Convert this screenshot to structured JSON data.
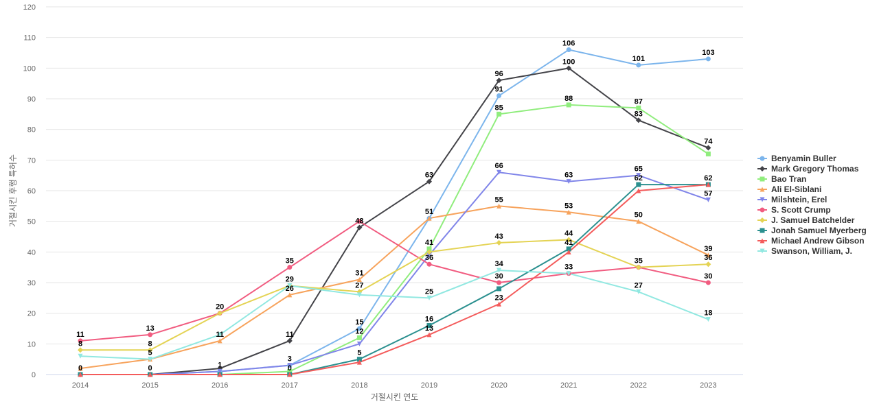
{
  "chart_data": {
    "type": "line",
    "title": "",
    "xlabel": "거절시킨 연도",
    "ylabel": "거절시킨 후행 특허수",
    "x": [
      "2014",
      "2015",
      "2016",
      "2017",
      "2018",
      "2019",
      "2020",
      "2021",
      "2022",
      "2023"
    ],
    "ylim": [
      0,
      120
    ],
    "yticks": [
      0,
      10,
      20,
      30,
      40,
      50,
      60,
      70,
      80,
      90,
      100,
      110,
      120
    ],
    "grid": true,
    "legend_position": "right",
    "series": [
      {
        "name": "Benyamin Buller",
        "color": "#7cb5ec",
        "marker": "circle",
        "values": [
          0,
          0,
          1,
          3,
          15,
          51,
          91,
          106,
          101,
          103
        ]
      },
      {
        "name": "Mark Gregory Thomas",
        "color": "#434348",
        "marker": "diamond",
        "values": [
          0,
          0,
          2,
          11,
          48,
          63,
          96,
          100,
          83,
          74
        ]
      },
      {
        "name": "Bao Tran",
        "color": "#90ed7d",
        "marker": "square",
        "values": [
          0,
          0,
          0,
          1,
          12,
          41,
          85,
          88,
          87,
          72
        ]
      },
      {
        "name": "Ali El-Siblani",
        "color": "#f7a35c",
        "marker": "triangle",
        "values": [
          2,
          5,
          11,
          26,
          31,
          51,
          55,
          53,
          50,
          39
        ]
      },
      {
        "name": "Milshtein, Erel",
        "color": "#8085e9",
        "marker": "triangle-down",
        "values": [
          0,
          0,
          1,
          3,
          10,
          39,
          66,
          63,
          65,
          57
        ]
      },
      {
        "name": "S. Scott Crump",
        "color": "#f15c80",
        "marker": "circle",
        "values": [
          11,
          13,
          20,
          35,
          50,
          36,
          30,
          33,
          35,
          30
        ]
      },
      {
        "name": "J. Samuel Batchelder",
        "color": "#e4d354",
        "marker": "diamond",
        "values": [
          8,
          8,
          20,
          29,
          27,
          40,
          43,
          44,
          35,
          36
        ]
      },
      {
        "name": "Jonah Samuel Myerberg",
        "color": "#2b908f",
        "marker": "square",
        "values": [
          0,
          0,
          0,
          0,
          5,
          16,
          28,
          41,
          62,
          62
        ]
      },
      {
        "name": "Michael Andrew Gibson",
        "color": "#f45b5b",
        "marker": "triangle",
        "values": [
          0,
          0,
          0,
          0,
          4,
          13,
          23,
          40,
          60,
          62
        ]
      },
      {
        "name": "Swanson, William, J.",
        "color": "#91e8e1",
        "marker": "triangle-down",
        "values": [
          6,
          5,
          13,
          29,
          26,
          25,
          34,
          33,
          27,
          18
        ]
      }
    ],
    "data_labels": [
      {
        "x": "2014",
        "text": "11",
        "y": 11
      },
      {
        "x": "2014",
        "text": "8",
        "y": 8
      },
      {
        "x": "2014",
        "text": "0",
        "y": 0
      },
      {
        "x": "2015",
        "text": "13",
        "y": 13
      },
      {
        "x": "2015",
        "text": "8",
        "y": 8
      },
      {
        "x": "2015",
        "text": "5",
        "y": 5
      },
      {
        "x": "2015",
        "text": "0",
        "y": 0
      },
      {
        "x": "2016",
        "text": "20",
        "y": 20
      },
      {
        "x": "2016",
        "text": "11",
        "y": 11
      },
      {
        "x": "2016",
        "text": "1",
        "y": 1
      },
      {
        "x": "2017",
        "text": "35",
        "y": 35
      },
      {
        "x": "2017",
        "text": "29",
        "y": 29
      },
      {
        "x": "2017",
        "text": "26",
        "y": 26
      },
      {
        "x": "2017",
        "text": "11",
        "y": 11
      },
      {
        "x": "2017",
        "text": "3",
        "y": 3
      },
      {
        "x": "2017",
        "text": "0",
        "y": 0
      },
      {
        "x": "2018",
        "text": "48",
        "y": 48
      },
      {
        "x": "2018",
        "text": "31",
        "y": 31
      },
      {
        "x": "2018",
        "text": "27",
        "y": 27
      },
      {
        "x": "2018",
        "text": "15",
        "y": 15
      },
      {
        "x": "2018",
        "text": "12",
        "y": 12
      },
      {
        "x": "2018",
        "text": "5",
        "y": 5
      },
      {
        "x": "2019",
        "text": "63",
        "y": 63
      },
      {
        "x": "2019",
        "text": "51",
        "y": 51
      },
      {
        "x": "2019",
        "text": "41",
        "y": 41
      },
      {
        "x": "2019",
        "text": "36",
        "y": 36
      },
      {
        "x": "2019",
        "text": "25",
        "y": 25
      },
      {
        "x": "2019",
        "text": "16",
        "y": 16
      },
      {
        "x": "2019",
        "text": "13",
        "y": 13
      },
      {
        "x": "2020",
        "text": "96",
        "y": 96
      },
      {
        "x": "2020",
        "text": "91",
        "y": 91
      },
      {
        "x": "2020",
        "text": "85",
        "y": 85
      },
      {
        "x": "2020",
        "text": "66",
        "y": 66
      },
      {
        "x": "2020",
        "text": "55",
        "y": 55
      },
      {
        "x": "2020",
        "text": "43",
        "y": 43
      },
      {
        "x": "2020",
        "text": "34",
        "y": 34
      },
      {
        "x": "2020",
        "text": "30",
        "y": 30
      },
      {
        "x": "2020",
        "text": "23",
        "y": 23
      },
      {
        "x": "2021",
        "text": "106",
        "y": 106
      },
      {
        "x": "2021",
        "text": "100",
        "y": 100
      },
      {
        "x": "2021",
        "text": "88",
        "y": 88
      },
      {
        "x": "2021",
        "text": "63",
        "y": 63
      },
      {
        "x": "2021",
        "text": "53",
        "y": 53
      },
      {
        "x": "2021",
        "text": "44",
        "y": 44
      },
      {
        "x": "2021",
        "text": "41",
        "y": 41
      },
      {
        "x": "2021",
        "text": "33",
        "y": 33
      },
      {
        "x": "2022",
        "text": "101",
        "y": 101
      },
      {
        "x": "2022",
        "text": "87",
        "y": 87
      },
      {
        "x": "2022",
        "text": "83",
        "y": 83
      },
      {
        "x": "2022",
        "text": "65",
        "y": 65
      },
      {
        "x": "2022",
        "text": "62",
        "y": 62
      },
      {
        "x": "2022",
        "text": "50",
        "y": 50
      },
      {
        "x": "2022",
        "text": "35",
        "y": 35
      },
      {
        "x": "2022",
        "text": "27",
        "y": 27
      },
      {
        "x": "2023",
        "text": "103",
        "y": 103
      },
      {
        "x": "2023",
        "text": "74",
        "y": 74
      },
      {
        "x": "2023",
        "text": "62",
        "y": 62
      },
      {
        "x": "2023",
        "text": "57",
        "y": 57
      },
      {
        "x": "2023",
        "text": "39",
        "y": 39
      },
      {
        "x": "2023",
        "text": "36",
        "y": 36
      },
      {
        "x": "2023",
        "text": "30",
        "y": 30
      },
      {
        "x": "2023",
        "text": "18",
        "y": 18
      }
    ]
  }
}
